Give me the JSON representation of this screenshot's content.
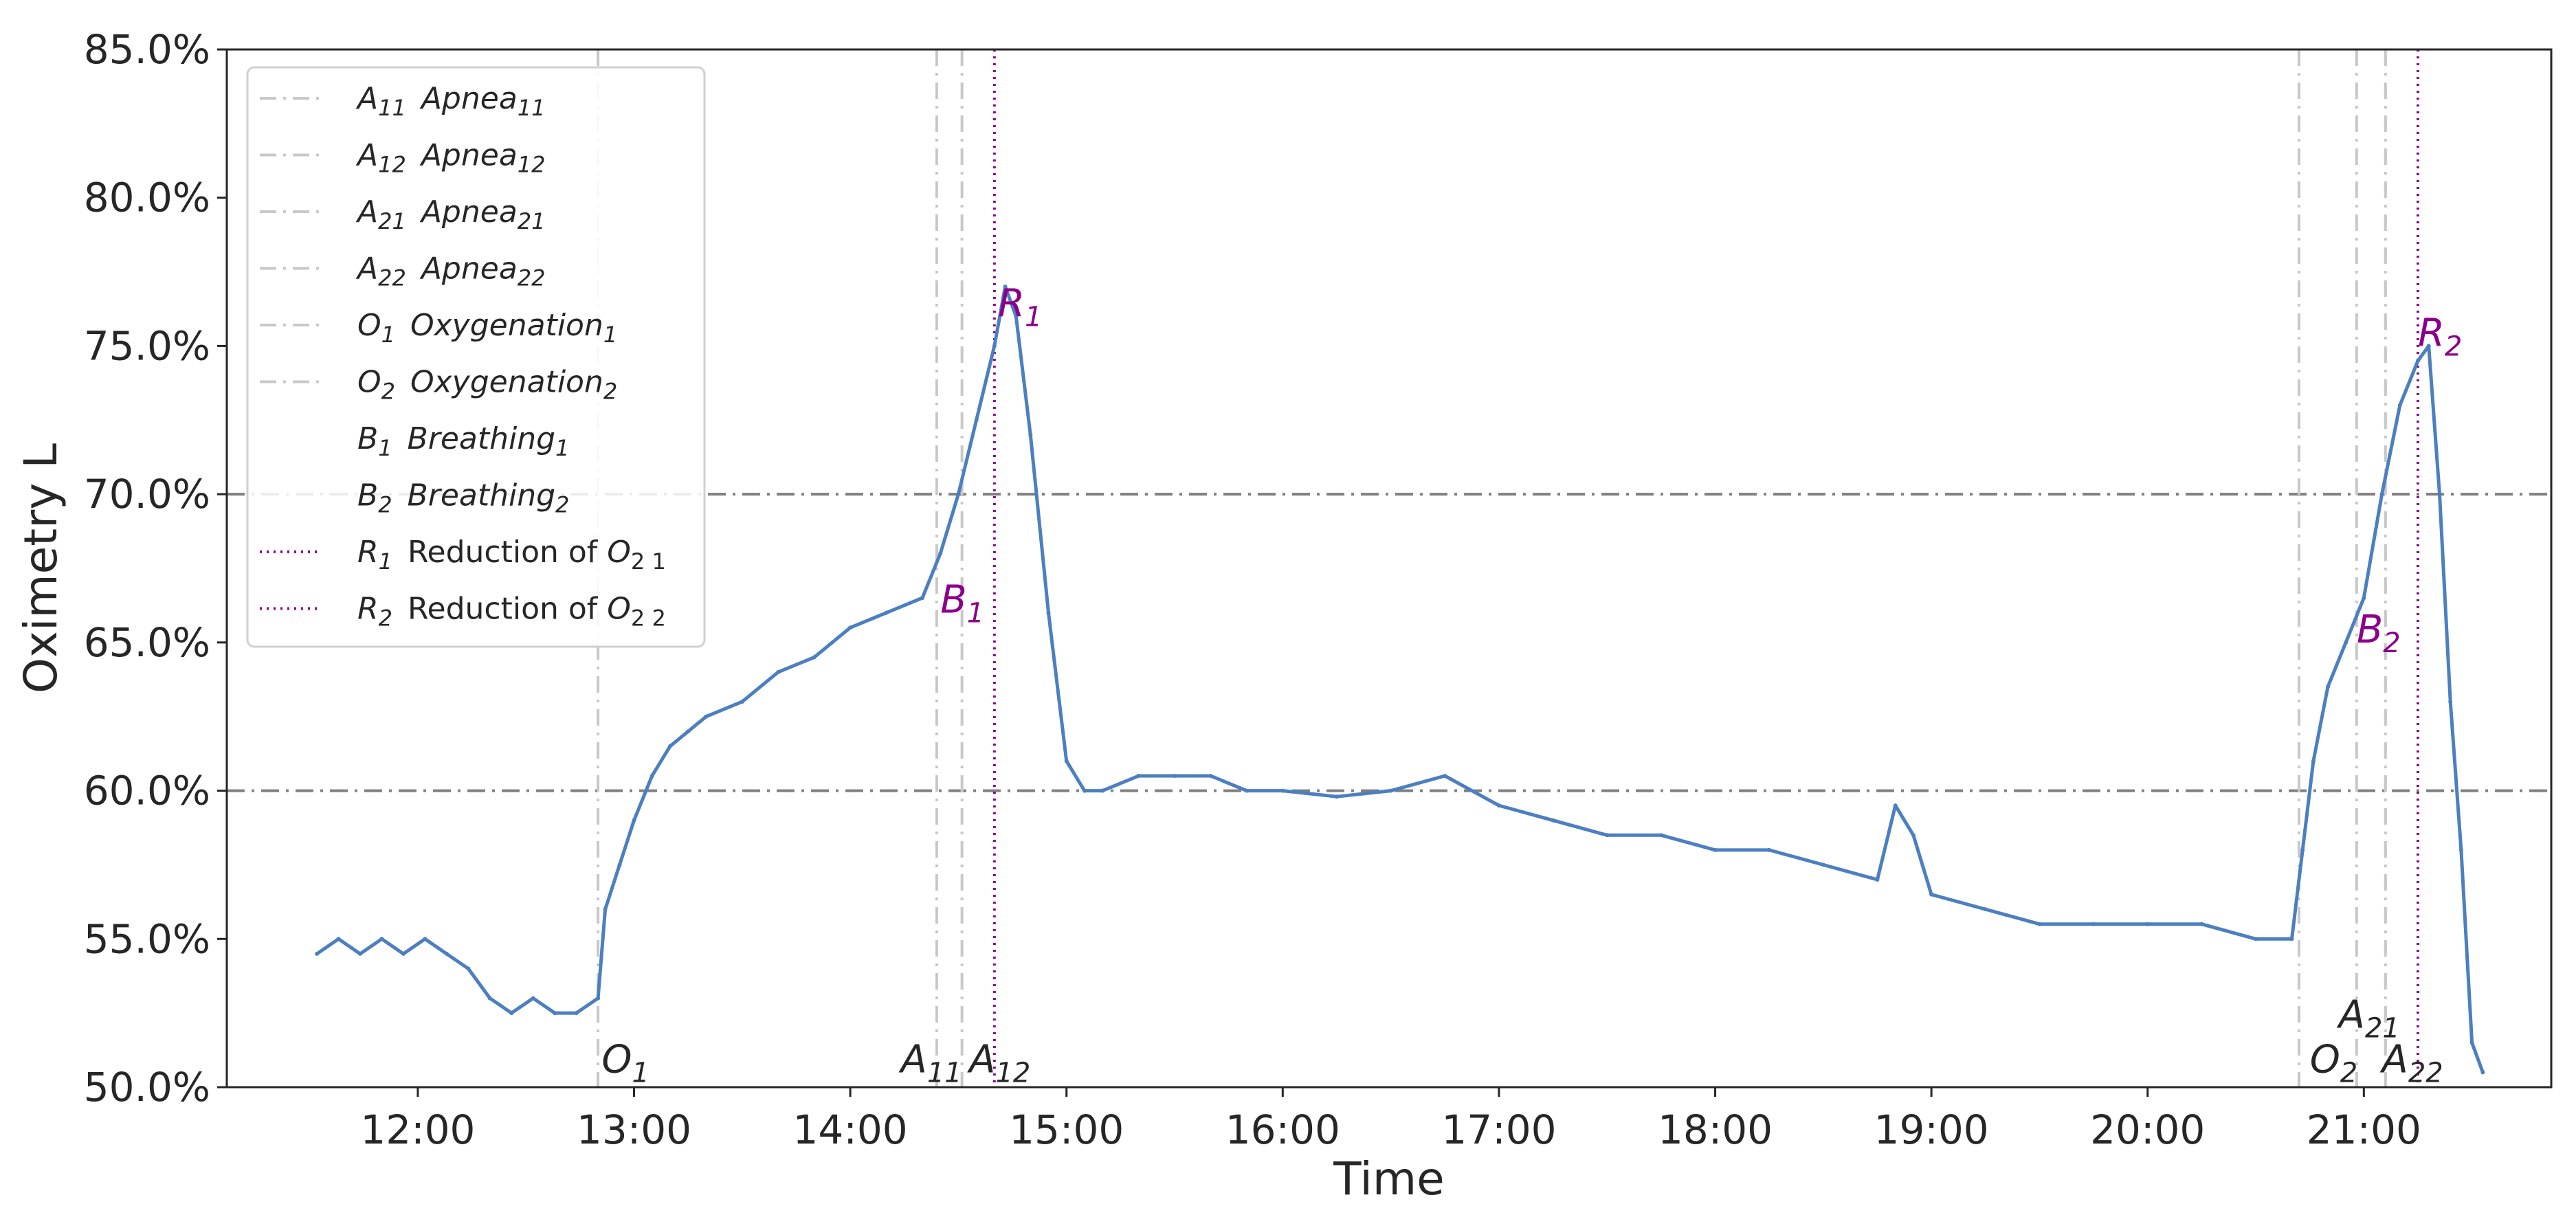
{
  "chart_data": {
    "type": "line",
    "xlabel": "Time",
    "ylabel": "Oximetry L",
    "ylim": [
      50.0,
      85.0
    ],
    "yticks": [
      "50.0%",
      "55.0%",
      "60.0%",
      "65.0%",
      "70.0%",
      "75.0%",
      "80.0%",
      "85.0%"
    ],
    "ytick_values": [
      50,
      55,
      60,
      65,
      70,
      75,
      80,
      85
    ],
    "xlim": [
      "11:07",
      "21:52"
    ],
    "xticks": [
      "12:00",
      "13:00",
      "14:00",
      "15:00",
      "16:00",
      "17:00",
      "18:00",
      "19:00",
      "20:00",
      "21:00"
    ],
    "xtick_values": [
      "12:00",
      "13:00",
      "14:00",
      "15:00",
      "16:00",
      "17:00",
      "18:00",
      "19:00",
      "20:00",
      "21:00"
    ],
    "grid": false,
    "horizontal_reference_lines": [
      60.0,
      70.0
    ],
    "series_color": "#4c7fc0",
    "reduction_color": "#8b008b",
    "event_line_color": "#c8c8c8",
    "ref_line_color": "#7f7f7f",
    "series": [
      {
        "name": "Oximetry",
        "x": [
          "11:32",
          "11:38",
          "11:44",
          "11:50",
          "11:56",
          "12:02",
          "12:08",
          "12:14",
          "12:20",
          "12:26",
          "12:32",
          "12:38",
          "12:44",
          "12:50",
          "12:52",
          "12:56",
          "13:00",
          "13:05",
          "13:10",
          "13:15",
          "13:20",
          "13:30",
          "13:40",
          "13:50",
          "14:00",
          "14:10",
          "14:20",
          "14:25",
          "14:30",
          "14:35",
          "14:40",
          "14:43",
          "14:46",
          "14:50",
          "14:55",
          "15:00",
          "15:05",
          "15:10",
          "15:20",
          "15:30",
          "15:40",
          "15:50",
          "16:00",
          "16:15",
          "16:30",
          "16:45",
          "17:00",
          "17:15",
          "17:30",
          "17:45",
          "18:00",
          "18:15",
          "18:30",
          "18:45",
          "18:50",
          "18:55",
          "19:00",
          "19:15",
          "19:30",
          "19:45",
          "20:00",
          "20:15",
          "20:30",
          "20:40",
          "20:43",
          "20:46",
          "20:50",
          "20:55",
          "21:00",
          "21:05",
          "21:10",
          "21:15",
          "21:18",
          "21:21",
          "21:24",
          "21:27",
          "21:30",
          "21:33"
        ],
        "values": [
          54.5,
          55.0,
          54.5,
          55.0,
          54.5,
          55.0,
          54.5,
          54.0,
          53.0,
          52.5,
          53.0,
          52.5,
          52.5,
          53.0,
          56.0,
          57.5,
          59.0,
          60.5,
          61.5,
          62.0,
          62.5,
          63.0,
          64.0,
          64.5,
          65.5,
          66.0,
          66.5,
          68.0,
          70.0,
          72.5,
          75.0,
          77.0,
          76.0,
          72.0,
          66.0,
          61.0,
          60.0,
          60.0,
          60.5,
          60.5,
          60.5,
          60.0,
          60.0,
          59.8,
          60.0,
          60.5,
          59.5,
          59.0,
          58.5,
          58.5,
          58.0,
          58.0,
          57.5,
          57.0,
          59.5,
          58.5,
          56.5,
          56.0,
          55.5,
          55.5,
          55.5,
          55.5,
          55.0,
          55.0,
          58.0,
          61.0,
          63.5,
          65.0,
          66.5,
          70.0,
          73.0,
          74.5,
          75.0,
          70.0,
          63.0,
          58.0,
          51.5,
          50.5
        ]
      }
    ],
    "event_lines": [
      {
        "label": "O1",
        "x": "12:50",
        "kind": "dashdot"
      },
      {
        "label": "A11",
        "x": "14:24",
        "kind": "dashdot"
      },
      {
        "label": "A12",
        "x": "14:31",
        "kind": "dashdot"
      },
      {
        "label": "R1",
        "x": "14:40",
        "kind": "dotted"
      },
      {
        "label": "O2",
        "x": "20:42",
        "kind": "dashdot"
      },
      {
        "label": "A21",
        "x": "20:58",
        "kind": "dashdot"
      },
      {
        "label": "A22",
        "x": "21:06",
        "kind": "dashdot"
      },
      {
        "label": "R2",
        "x": "21:15",
        "kind": "dotted"
      }
    ],
    "annotations": [
      {
        "main": "O",
        "sub": "1",
        "x": "12:51",
        "y": 50.5,
        "color": "#262626"
      },
      {
        "main": "A",
        "sub": "11",
        "x": "14:14",
        "y": 50.5,
        "color": "#262626"
      },
      {
        "main": "A",
        "sub": "12",
        "x": "14:33",
        "y": 50.5,
        "color": "#262626"
      },
      {
        "main": "R",
        "sub": "1",
        "x": "14:41",
        "y": 76.0,
        "color": "#8b008b"
      },
      {
        "main": "B",
        "sub": "1",
        "x": "14:25",
        "y": 66.0,
        "color": "#8b008b"
      },
      {
        "main": "O",
        "sub": "2",
        "x": "20:45",
        "y": 50.5,
        "color": "#262626"
      },
      {
        "main": "A",
        "sub": "21",
        "x": "20:53",
        "y": 52.0,
        "color": "#262626"
      },
      {
        "main": "A",
        "sub": "22",
        "x": "21:05",
        "y": 50.5,
        "color": "#262626"
      },
      {
        "main": "B",
        "sub": "2",
        "x": "20:58",
        "y": 65.0,
        "color": "#8b008b"
      },
      {
        "main": "R",
        "sub": "2",
        "x": "21:15",
        "y": 75.0,
        "color": "#8b008b"
      }
    ],
    "legend": {
      "placement": "top-left",
      "entries": [
        {
          "sym": "A",
          "sub": "11",
          "name": "Apnea",
          "name_sub": "11",
          "style": "dashdot",
          "italic": true
        },
        {
          "sym": "A",
          "sub": "12",
          "name": "Apnea",
          "name_sub": "12",
          "style": "dashdot",
          "italic": true
        },
        {
          "sym": "A",
          "sub": "21",
          "name": "Apnea",
          "name_sub": "21",
          "style": "dashdot",
          "italic": true
        },
        {
          "sym": "A",
          "sub": "22",
          "name": "Apnea",
          "name_sub": "22",
          "style": "dashdot",
          "italic": true
        },
        {
          "sym": "O",
          "sub": "1",
          "name": "Oxygenation",
          "name_sub": "1",
          "style": "dashdot",
          "italic": true
        },
        {
          "sym": "O",
          "sub": "2",
          "name": "Oxygenation",
          "name_sub": "2",
          "style": "dashdot",
          "italic": true
        },
        {
          "sym": "B",
          "sub": "1",
          "name": "Breathing",
          "name_sub": "1",
          "style": "none",
          "italic": true
        },
        {
          "sym": "B",
          "sub": "2",
          "name": "Breathing",
          "name_sub": "2",
          "style": "none",
          "italic": true
        },
        {
          "sym": "R",
          "sub": "1",
          "name": "Reduction of O",
          "name_sub": "2 1",
          "style": "dotted",
          "italic": false
        },
        {
          "sym": "R",
          "sub": "2",
          "name": "Reduction of O",
          "name_sub": "2 2",
          "style": "dotted",
          "italic": false
        }
      ]
    }
  }
}
